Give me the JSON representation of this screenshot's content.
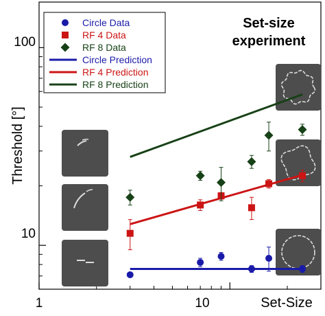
{
  "chart_data": {
    "type": "scatter",
    "x_scale": "log",
    "y_scale": "log",
    "xlim": [
      1,
      30
    ],
    "ylim": [
      6,
      170
    ],
    "xlabel": "Set-Size",
    "ylabel": "Threshold [°]",
    "x_tick_labels": [
      "1",
      "10"
    ],
    "x_ticks": [
      1,
      10
    ],
    "y_tick_labels": [
      "10",
      "100"
    ],
    "y_ticks": [
      10,
      100
    ],
    "annotation": [
      "Set-size",
      "experiment"
    ],
    "grid": false,
    "legend_position": "top-left",
    "series": [
      {
        "name": "Circle Data",
        "kind": "points",
        "marker": "circle",
        "color": "#1a1aa8",
        "points": [
          {
            "x": 3,
            "y": 7.1,
            "err": 0
          },
          {
            "x": 7,
            "y": 8.2,
            "err": 0.4
          },
          {
            "x": 9,
            "y": 8.8,
            "err": 0.4
          },
          {
            "x": 13,
            "y": 7.6,
            "err": 0.3
          },
          {
            "x": 16,
            "y": 8.6,
            "err": 1.2
          },
          {
            "x": 24,
            "y": 7.6,
            "err": 0.3
          }
        ]
      },
      {
        "name": "RF 4 Data",
        "kind": "points",
        "marker": "square",
        "color": "#cc1414",
        "points": [
          {
            "x": 3,
            "y": 11.5,
            "err": 2.0
          },
          {
            "x": 7,
            "y": 16.0,
            "err": 1.0
          },
          {
            "x": 9,
            "y": 17.8,
            "err": 0.7
          },
          {
            "x": 13,
            "y": 15.5,
            "err": 2.0
          },
          {
            "x": 16,
            "y": 20.5,
            "err": 1.0
          },
          {
            "x": 24,
            "y": 22.5,
            "err": 1.5
          }
        ]
      },
      {
        "name": "RF 8 Data",
        "kind": "points",
        "marker": "diamond",
        "color": "#174117",
        "points": [
          {
            "x": 3,
            "y": 17.5,
            "err": 1.5
          },
          {
            "x": 7,
            "y": 22.5,
            "err": 1.2
          },
          {
            "x": 9,
            "y": 20.8,
            "err": 4.0
          },
          {
            "x": 13,
            "y": 26.5,
            "err": 2.0
          },
          {
            "x": 16,
            "y": 36.0,
            "err": 6.0
          },
          {
            "x": 24,
            "y": 38.5,
            "err": 2.5
          }
        ]
      },
      {
        "name": "Circle Prediction",
        "kind": "line",
        "color": "#1a1aa8",
        "x": [
          3,
          24
        ],
        "y": [
          7.6,
          7.6
        ]
      },
      {
        "name": "RF 4 Prediction",
        "kind": "line",
        "color": "#cc1414",
        "x": [
          3,
          24
        ],
        "y": [
          12.8,
          22.7
        ]
      },
      {
        "name": "RF 8 Prediction",
        "kind": "line",
        "color": "#174117",
        "x": [
          3,
          24
        ],
        "y": [
          28.0,
          58.0
        ]
      }
    ]
  }
}
